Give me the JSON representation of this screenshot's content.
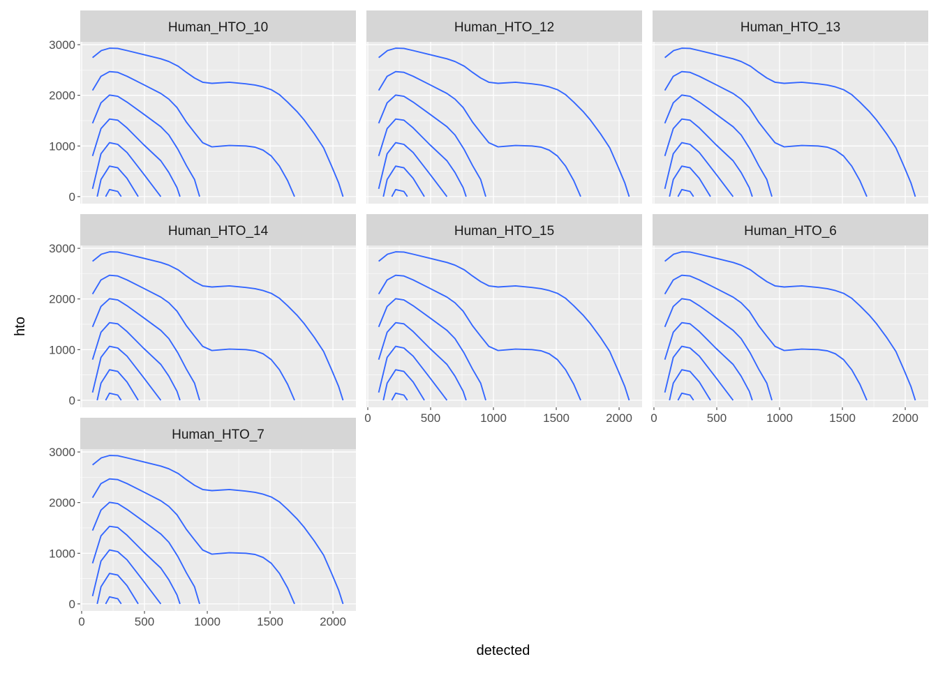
{
  "chart_data": {
    "type": "line",
    "geom": "density_2d contours",
    "xlabel": "detected",
    "ylabel": "hto",
    "xlim": [
      -11,
      2183
    ],
    "ylim": [
      -139,
      3056
    ],
    "x_ticks": [
      0,
      500,
      1000,
      1500,
      2000
    ],
    "y_ticks": [
      0,
      1000,
      2000,
      3000
    ],
    "grid": true,
    "line_color": "#3366ff",
    "panel_background": "#ebebeb",
    "strip_background": "#d6d6d6",
    "facets": [
      "Human_HTO_10",
      "Human_HTO_12",
      "Human_HTO_13",
      "Human_HTO_14",
      "Human_HTO_15",
      "Human_HTO_6",
      "Human_HTO_7"
    ],
    "contours": [
      {
        "x": [
          87,
          157,
          222,
          287,
          361,
          491,
          630,
          694,
          769,
          833,
          898,
          963,
          1037,
          1176,
          1306,
          1380,
          1444,
          1509,
          1574,
          1639,
          1713,
          1769,
          1852,
          1926,
          1991,
          2046,
          2080
        ],
        "y": [
          2745,
          2884,
          2931,
          2926,
          2884,
          2806,
          2722,
          2667,
          2574,
          2454,
          2343,
          2259,
          2236,
          2259,
          2227,
          2204,
          2167,
          2111,
          2014,
          1866,
          1681,
          1519,
          1241,
          963,
          593,
          269,
          0
        ]
      },
      {
        "x": [
          87,
          154,
          222,
          287,
          361,
          491,
          630,
          694,
          759,
          833,
          898,
          963,
          1037,
          1176,
          1306,
          1380,
          1444,
          1509,
          1574,
          1639,
          1694
        ],
        "y": [
          2097,
          2375,
          2468,
          2454,
          2375,
          2213,
          2037,
          1926,
          1759,
          1472,
          1264,
          1065,
          982,
          1009,
          1000,
          977,
          917,
          801,
          602,
          315,
          0
        ]
      },
      {
        "x": [
          87,
          154,
          222,
          287,
          361,
          491,
          630,
          694,
          765,
          833,
          898,
          939
        ],
        "y": [
          1449,
          1852,
          2005,
          1981,
          1866,
          1634,
          1380,
          1218,
          940,
          616,
          338,
          0
        ]
      },
      {
        "x": [
          87,
          154,
          222,
          287,
          361,
          491,
          630,
          694,
          759,
          783
        ],
        "y": [
          801,
          1343,
          1532,
          1509,
          1356,
          1032,
          708,
          477,
          176,
          0
        ]
      },
      {
        "x": [
          87,
          154,
          222,
          287,
          361,
          491,
          630
        ],
        "y": [
          153,
          847,
          1065,
          1032,
          870,
          454,
          0
        ]
      },
      {
        "x": [
          124,
          154,
          222,
          287,
          361,
          450
        ],
        "y": [
          0,
          338,
          602,
          569,
          361,
          0
        ]
      },
      {
        "x": [
          191,
          222,
          287,
          315
        ],
        "y": [
          0,
          139,
          102,
          0
        ]
      }
    ]
  }
}
